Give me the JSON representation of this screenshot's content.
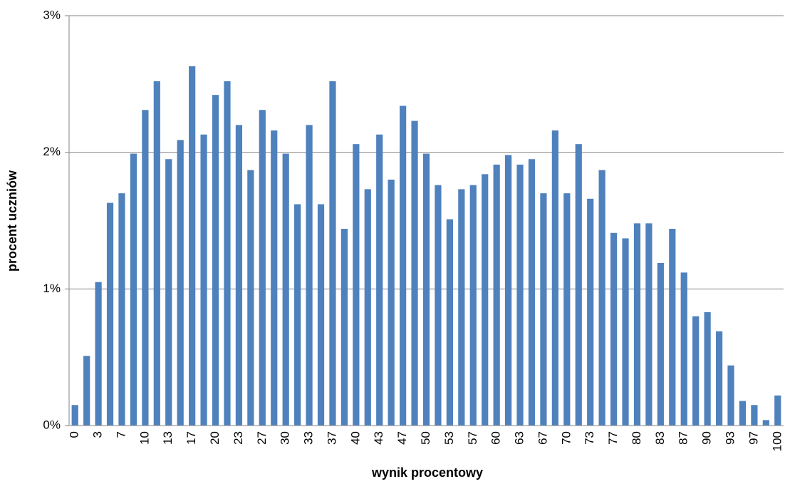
{
  "chart_data": {
    "type": "bar",
    "x_label": "wynik procentowy",
    "y_label": "procent uczniów",
    "categories": [
      "0",
      null,
      "3",
      null,
      "7",
      null,
      "10",
      null,
      "13",
      null,
      "17",
      null,
      "20",
      null,
      "23",
      null,
      "27",
      null,
      "30",
      null,
      "33",
      null,
      "37",
      null,
      "40",
      null,
      "43",
      null,
      "47",
      null,
      "50",
      null,
      "53",
      null,
      "57",
      null,
      "60",
      null,
      "63",
      null,
      "67",
      null,
      "70",
      null,
      "73",
      null,
      "77",
      null,
      "80",
      null,
      "83",
      null,
      "87",
      null,
      "90",
      null,
      "93",
      null,
      "97",
      null,
      "100"
    ],
    "values": [
      0.15,
      0.51,
      1.05,
      1.63,
      1.7,
      1.99,
      2.31,
      2.52,
      1.95,
      2.09,
      2.63,
      2.13,
      2.42,
      2.52,
      2.2,
      1.87,
      2.31,
      2.16,
      1.99,
      1.62,
      2.2,
      1.62,
      2.52,
      1.44,
      2.06,
      1.73,
      2.13,
      1.8,
      2.34,
      2.23,
      1.99,
      1.76,
      1.51,
      1.73,
      1.76,
      1.84,
      1.91,
      1.98,
      1.91,
      1.95,
      1.7,
      2.16,
      1.7,
      2.06,
      1.66,
      1.87,
      1.41,
      1.37,
      1.48,
      1.48,
      1.19,
      1.44,
      1.12,
      0.8,
      0.83,
      0.69,
      0.44,
      0.18,
      0.15,
      0.04,
      0.22
    ],
    "color": "#4f81bd",
    "ylim": [
      0,
      3
    ],
    "yticks": [
      {
        "value": 0,
        "label": "0%"
      },
      {
        "value": 1,
        "label": "1%"
      },
      {
        "value": 2,
        "label": "2%"
      },
      {
        "value": 3,
        "label": "3%"
      }
    ],
    "grid": true
  }
}
